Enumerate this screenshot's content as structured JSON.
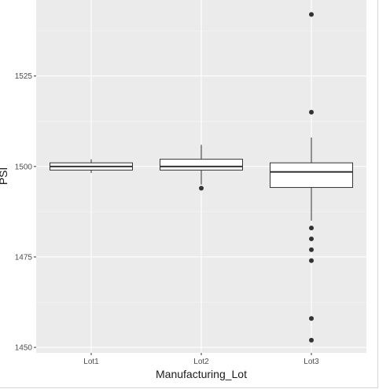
{
  "chart_data": {
    "type": "box",
    "xlabel": "Manufacturing_Lot",
    "ylabel": "PSI",
    "categories": [
      "Lot1",
      "Lot2",
      "Lot3"
    ],
    "ylim": [
      1448.5,
      1546
    ],
    "y_ticks": [
      1450,
      1475,
      1500,
      1525
    ],
    "y_tick_labels": [
      "1450",
      "1475",
      "1500",
      "1525"
    ],
    "grid": true,
    "background": "#ebebeb",
    "gridline_color": "#ffffff",
    "boxes": [
      {
        "category": "Lot1",
        "whisker_low": 1498.2,
        "q1": 1499.0,
        "median": 1500.0,
        "q3": 1501.0,
        "whisker_high": 1502.0,
        "outliers": []
      },
      {
        "category": "Lot2",
        "whisker_low": 1495.0,
        "q1": 1499.0,
        "median": 1500.0,
        "q3": 1502.0,
        "whisker_high": 1506.0,
        "outliers": [
          1494.0
        ]
      },
      {
        "category": "Lot3",
        "whisker_low": 1485.0,
        "q1": 1494.2,
        "median": 1498.5,
        "q3": 1501.0,
        "whisker_high": 1508.0,
        "outliers": [
          1542.0,
          1515.0,
          1483.0,
          1480.0,
          1477.0,
          1474.0,
          1458.0,
          1452.0
        ]
      }
    ]
  }
}
